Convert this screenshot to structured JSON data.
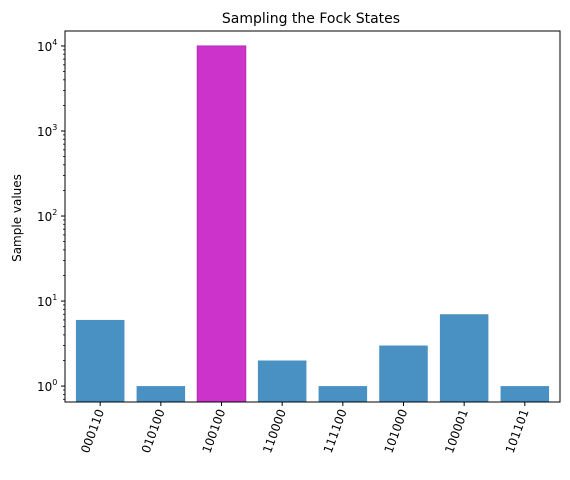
{
  "chart_data": {
    "type": "bar",
    "title": "Sampling the Fock States",
    "xlabel": "",
    "ylabel": "Sample values",
    "yscale": "log",
    "ylim": [
      0.65,
      15000
    ],
    "grid": false,
    "categories": [
      "000110",
      "010100",
      "100100",
      "110000",
      "111100",
      "101000",
      "100001",
      "101101"
    ],
    "values": [
      6,
      1,
      10000,
      2,
      1,
      3,
      7,
      1
    ],
    "bar_colors": [
      "#4a91c3",
      "#4a91c3",
      "#cb33cb",
      "#4a91c3",
      "#4a91c3",
      "#4a91c3",
      "#4a91c3",
      "#4a91c3"
    ],
    "y_ticks": [
      {
        "base": "10",
        "exp": "0"
      },
      {
        "base": "10",
        "exp": "1"
      },
      {
        "base": "10",
        "exp": "2"
      },
      {
        "base": "10",
        "exp": "3"
      },
      {
        "base": "10",
        "exp": "4"
      }
    ]
  }
}
